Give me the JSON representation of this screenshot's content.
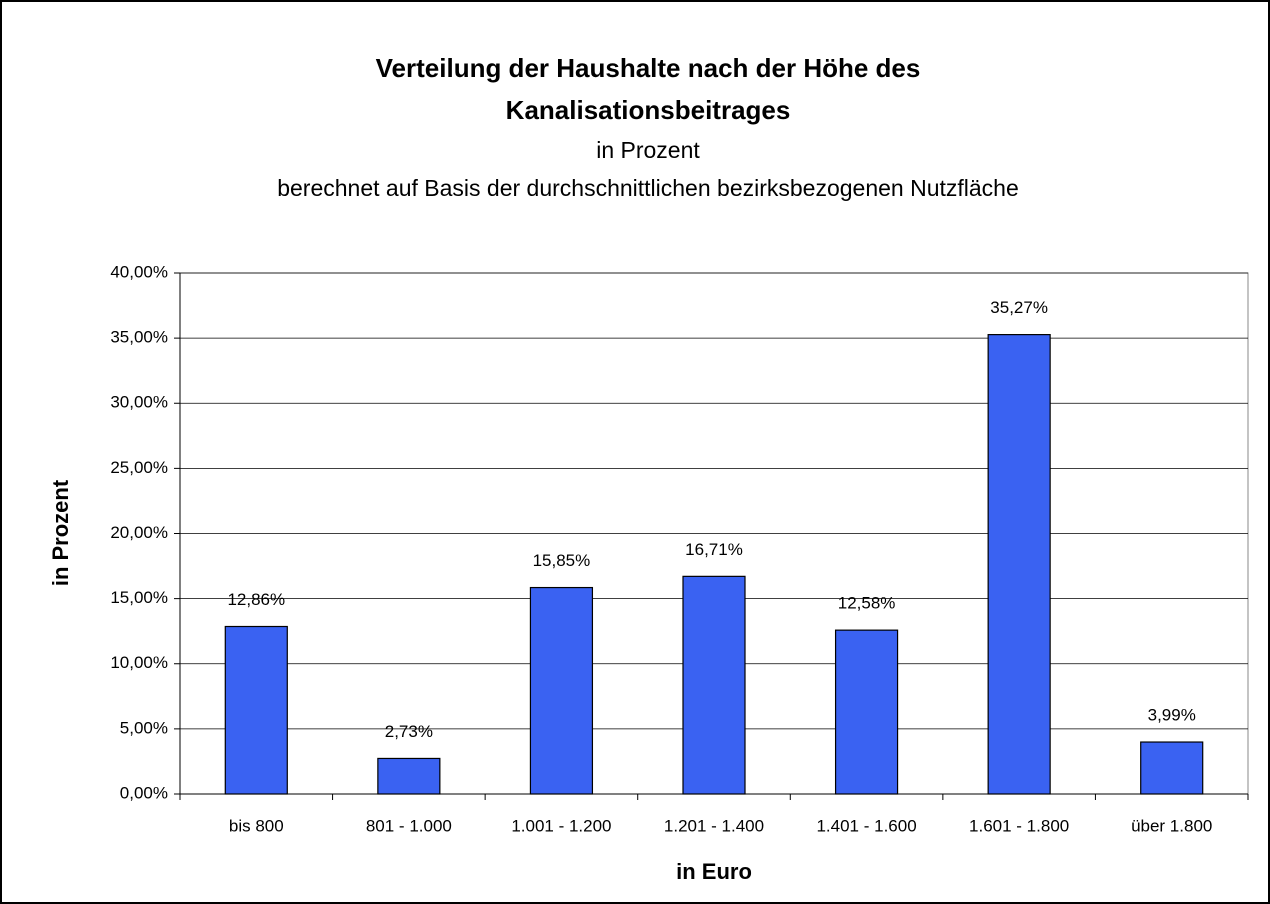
{
  "chart_data": {
    "type": "bar",
    "title": [
      "Verteilung der Haushalte nach der Höhe des",
      "Kanalisationsbeitrages"
    ],
    "subtitle": [
      "in Prozent",
      "berechnet auf Basis der durchschnittlichen bezirksbezogenen Nutzfläche"
    ],
    "x_label": "in Euro",
    "y_label": "in Prozent",
    "categories": [
      "bis 800",
      "801 - 1.000",
      "1.001 - 1.200",
      "1.201 - 1.400",
      "1.401 - 1.600",
      "1.601 - 1.800",
      "über 1.800"
    ],
    "values": [
      12.86,
      2.73,
      15.85,
      16.71,
      12.58,
      35.27,
      3.99
    ],
    "value_labels": [
      "12,86%",
      "2,73%",
      "15,85%",
      "16,71%",
      "12,58%",
      "35,27%",
      "3,99%"
    ],
    "color": "#3a62f2",
    "ylim": [
      0,
      40
    ],
    "yticks": [
      {
        "value": 0,
        "label": "0,00%"
      },
      {
        "value": 5,
        "label": "5,00%"
      },
      {
        "value": 10,
        "label": "10,00%"
      },
      {
        "value": 15,
        "label": "15,00%"
      },
      {
        "value": 20,
        "label": "20,00%"
      },
      {
        "value": 25,
        "label": "25,00%"
      },
      {
        "value": 30,
        "label": "30,00%"
      },
      {
        "value": 35,
        "label": "35,00%"
      },
      {
        "value": 40,
        "label": "40,00%"
      }
    ],
    "grid": true
  }
}
